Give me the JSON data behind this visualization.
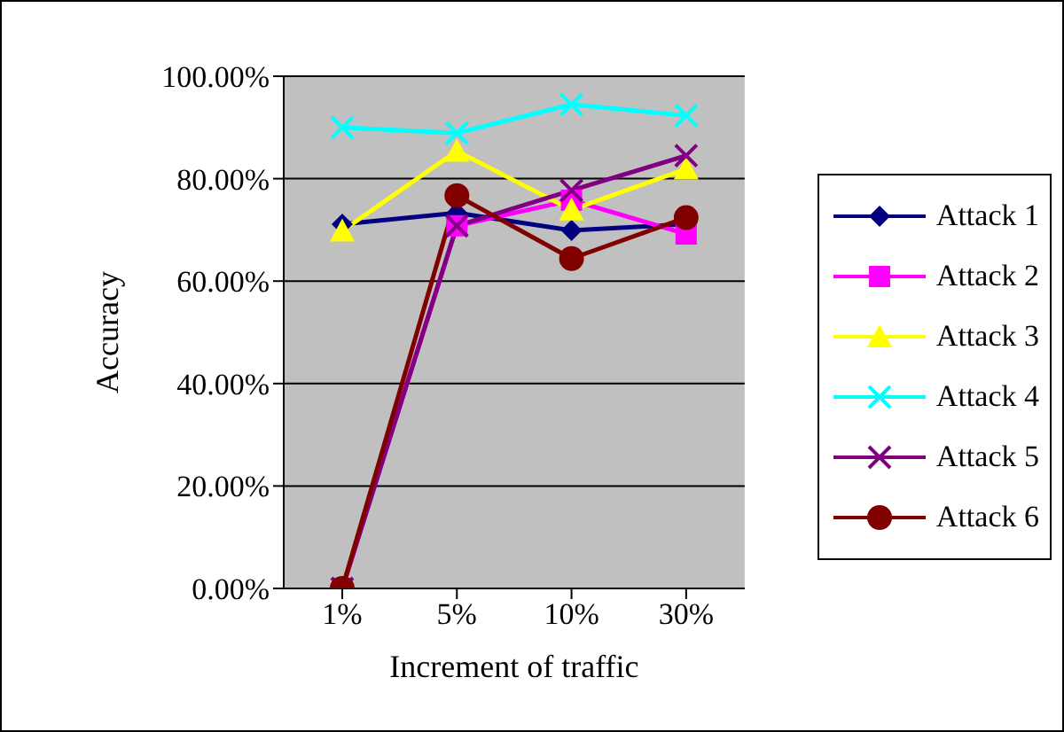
{
  "chart_data": {
    "type": "line",
    "xlabel": "Increment of traffic",
    "ylabel": "Accuracy",
    "categories": [
      "1%",
      "5%",
      "10%",
      "30%"
    ],
    "series": [
      {
        "name": "Attack 1",
        "color": "#000080",
        "marker": "diamond",
        "values": [
          71.1,
          73.3,
          69.9,
          71.1
        ]
      },
      {
        "name": "Attack 2",
        "color": "#ff00ff",
        "marker": "square",
        "values": [
          0,
          70.8,
          75.8,
          69.2
        ]
      },
      {
        "name": "Attack 3",
        "color": "#ffff00",
        "marker": "triangle",
        "values": [
          69.8,
          85.4,
          73.9,
          81.9
        ]
      },
      {
        "name": "Attack 4",
        "color": "#00ffff",
        "marker": "cross",
        "values": [
          90.0,
          88.9,
          94.5,
          92.3
        ]
      },
      {
        "name": "Attack 5",
        "color": "#800080",
        "marker": "cross",
        "values": [
          0,
          70.8,
          77.7,
          84.5
        ]
      },
      {
        "name": "Attack 6",
        "color": "#800000",
        "marker": "circle",
        "values": [
          0,
          76.7,
          64.4,
          72.4
        ]
      }
    ],
    "ylim": [
      0,
      100
    ],
    "yticks": [
      {
        "value": 0,
        "label": "0.00%"
      },
      {
        "value": 20,
        "label": "20.00%"
      },
      {
        "value": 40,
        "label": "40.00%"
      },
      {
        "value": 60,
        "label": "60.00%"
      },
      {
        "value": 80,
        "label": "80.00%"
      },
      {
        "value": 100,
        "label": "100.00%"
      }
    ],
    "grid": "y",
    "legend": "right",
    "line_style": "solid"
  }
}
